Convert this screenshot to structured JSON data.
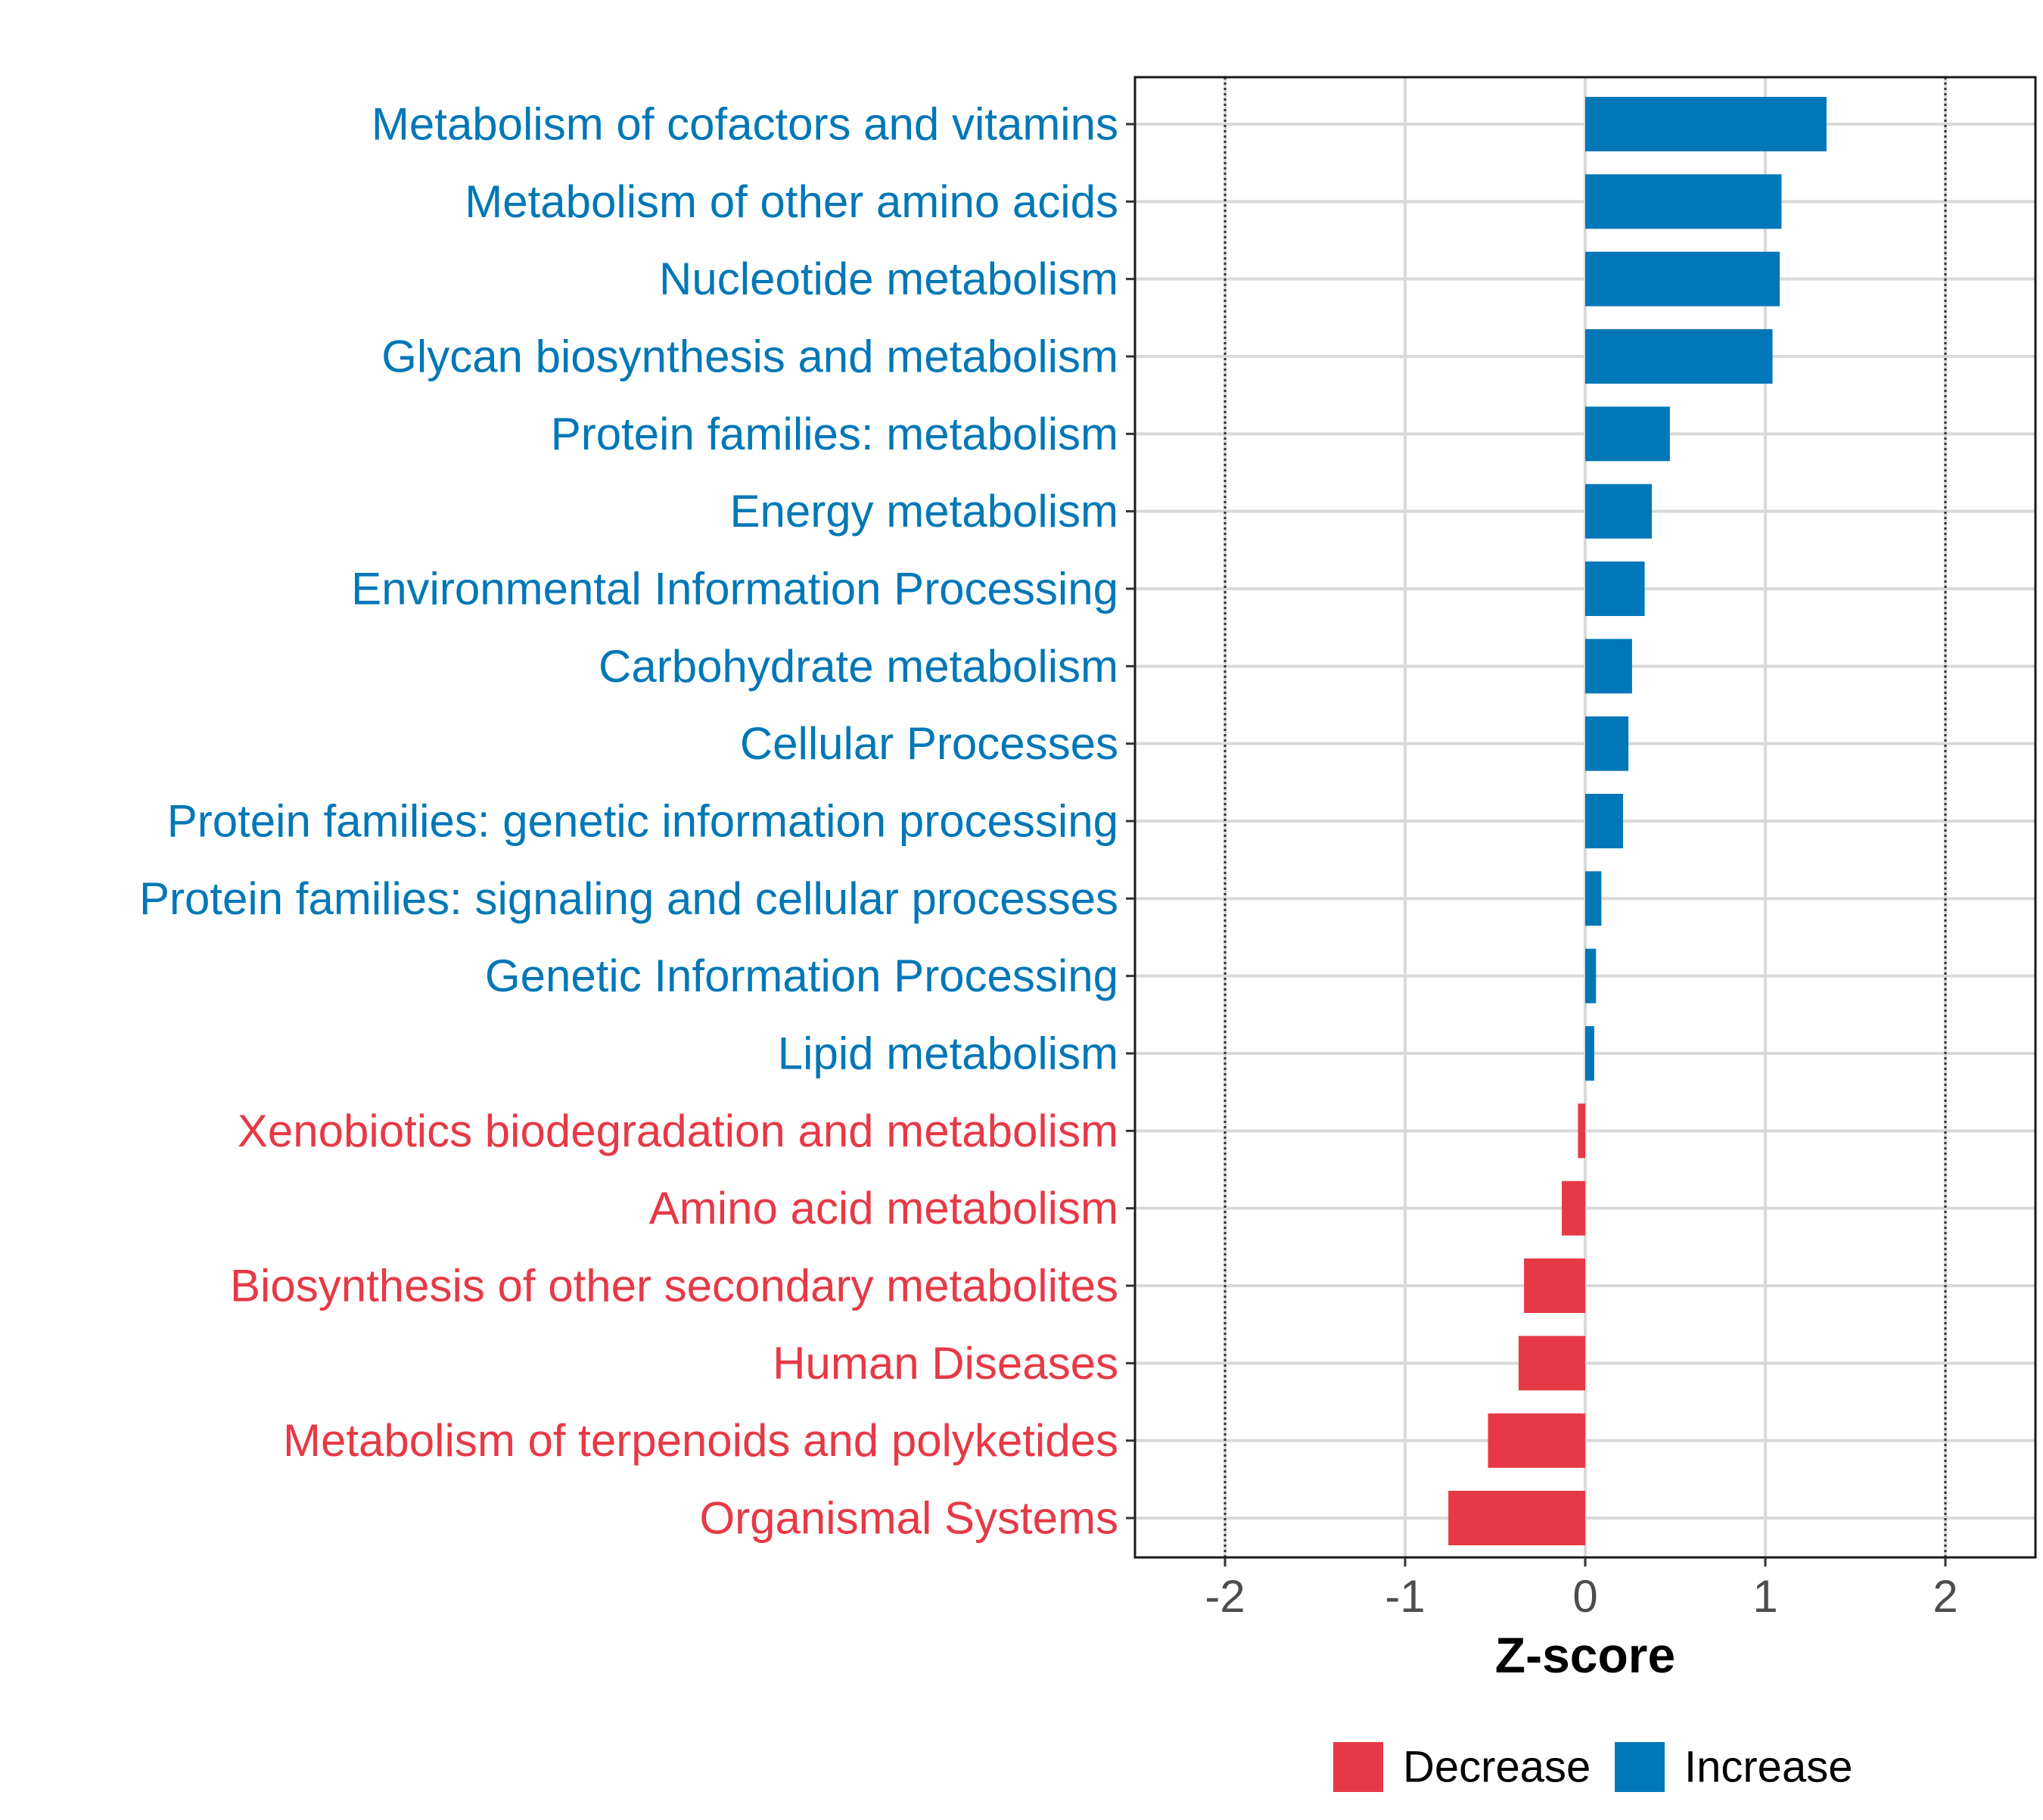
{
  "chart_data": {
    "type": "bar",
    "orientation": "horizontal",
    "title": "",
    "xlabel": "Z-score",
    "ylabel": "",
    "xlim": [
      -2.5,
      2.5
    ],
    "xticks": [
      -2,
      -1,
      0,
      1,
      2
    ],
    "xtick_labels": [
      "-2",
      "-1",
      "0",
      "1",
      "2"
    ],
    "reference_lines": [
      -2,
      2
    ],
    "grid": true,
    "legend_position": "bottom",
    "categories": [
      "Metabolism of cofactors and vitamins",
      "Metabolism of other amino acids",
      "Nucleotide metabolism",
      "Glycan biosynthesis and metabolism",
      "Protein families: metabolism",
      "Energy metabolism",
      "Environmental Information Processing",
      "Carbohydrate metabolism",
      "Cellular Processes",
      "Protein families: genetic information processing",
      "Protein families: signaling and cellular processes",
      "Genetic Information Processing",
      "Lipid metabolism",
      "Xenobiotics biodegradation and metabolism",
      "Amino acid metabolism",
      "Biosynthesis of other secondary metabolites",
      "Human Diseases",
      "Metabolism of terpenoids and polyketides",
      "Organismal Systems"
    ],
    "values": [
      1.34,
      1.09,
      1.08,
      1.04,
      0.47,
      0.37,
      0.33,
      0.26,
      0.24,
      0.21,
      0.09,
      0.06,
      0.05,
      -0.04,
      -0.13,
      -0.34,
      -0.37,
      -0.54,
      -0.76
    ],
    "groups": [
      "Increase",
      "Increase",
      "Increase",
      "Increase",
      "Increase",
      "Increase",
      "Increase",
      "Increase",
      "Increase",
      "Increase",
      "Increase",
      "Increase",
      "Increase",
      "Decrease",
      "Decrease",
      "Decrease",
      "Decrease",
      "Decrease",
      "Decrease"
    ],
    "legend": [
      {
        "label": "Decrease",
        "color": "#e63946"
      },
      {
        "label": "Increase",
        "color": "#0077b6"
      }
    ],
    "colors": {
      "Decrease": "#e63946",
      "Increase": "#0077b6"
    }
  }
}
